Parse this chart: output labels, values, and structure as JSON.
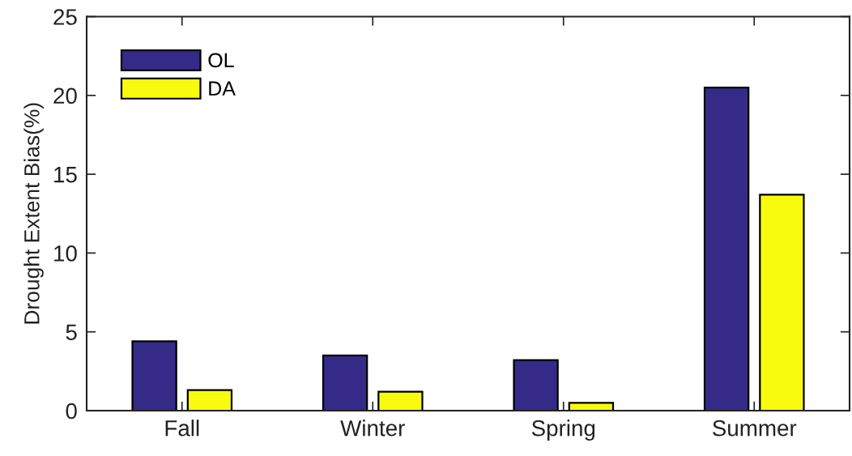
{
  "chart_data": {
    "type": "bar",
    "ylabel": "Drought Extent Bias(%)",
    "categories": [
      "Fall",
      "Winter",
      "Spring",
      "Summer"
    ],
    "series": [
      {
        "name": "OL",
        "color": "#352a87",
        "values": [
          4.4,
          3.5,
          3.2,
          20.5
        ]
      },
      {
        "name": "DA",
        "color": "#f9fb0e",
        "values": [
          1.3,
          1.2,
          0.5,
          13.7
        ]
      }
    ],
    "ylim": [
      0,
      25
    ],
    "yticks": [
      0,
      5,
      10,
      15,
      20,
      25
    ],
    "legend": "top left"
  }
}
